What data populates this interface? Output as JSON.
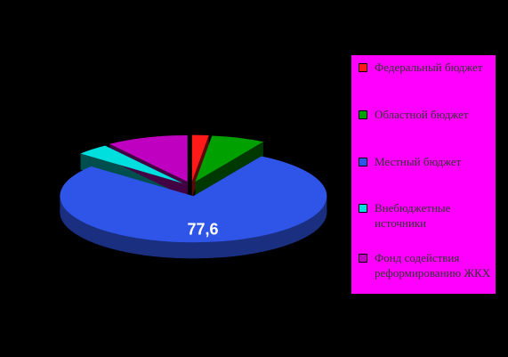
{
  "chart_data": {
    "type": "pie",
    "categories": [
      "Федеральный бюджет",
      "Областной бюджет",
      "Местный бюджет",
      "Внебюджетные источники",
      "Фонд содействия реформированию ЖКХ"
    ],
    "values": [
      2,
      6.5,
      77.6,
      4,
      9.9
    ],
    "value_labels": [
      null,
      null,
      "77,6",
      null,
      null
    ],
    "colors": [
      "#ff1a1a",
      "#00a000",
      "#2f55e8",
      "#00dede",
      "#c000c0"
    ],
    "legend": "right"
  }
}
